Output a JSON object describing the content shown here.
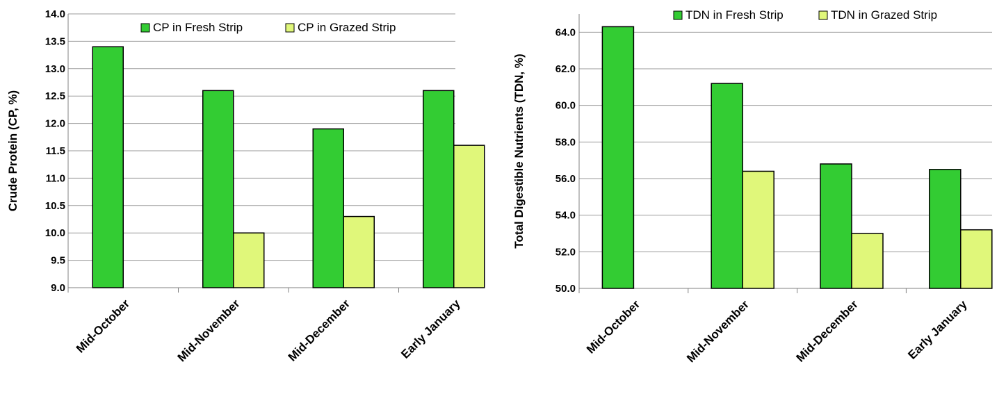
{
  "chart_data": [
    {
      "type": "bar",
      "title": "",
      "xlabel": "",
      "ylabel": "Crude Protein (CP, %)",
      "ylim": [
        9.0,
        14.0
      ],
      "ystep": 0.5,
      "ydecimals": 1,
      "grid": true,
      "legend_position": "top",
      "categories": [
        "Mid-October",
        "Mid-November",
        "Mid-December",
        "Early January"
      ],
      "series": [
        {
          "name": "CP in Fresh Strip",
          "color": "#33cc33",
          "values": [
            13.4,
            12.6,
            11.9,
            12.6
          ]
        },
        {
          "name": "CP in Grazed Strip",
          "color": "#e0f77a",
          "values": [
            null,
            10.0,
            10.3,
            11.6
          ]
        }
      ]
    },
    {
      "type": "bar",
      "title": "",
      "xlabel": "",
      "ylabel": "Total Digestible Nutrients (TDN, %)",
      "ylim": [
        50.0,
        65.0
      ],
      "ystep": 2.0,
      "ydecimals": 1,
      "grid": true,
      "legend_position": "top-right",
      "categories": [
        "Mid-October",
        "Mid-November",
        "Mid-December",
        "Early January"
      ],
      "series": [
        {
          "name": "TDN in Fresh Strip",
          "color": "#33cc33",
          "values": [
            64.3,
            61.2,
            56.8,
            56.5
          ]
        },
        {
          "name": "TDN in Grazed Strip",
          "color": "#e0f77a",
          "values": [
            null,
            56.4,
            53.0,
            53.2
          ]
        }
      ]
    }
  ]
}
